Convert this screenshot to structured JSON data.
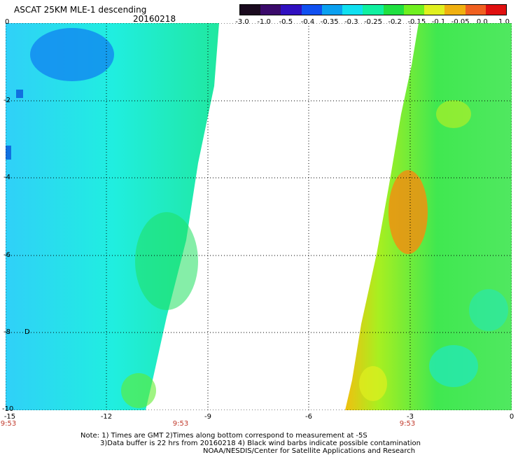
{
  "header": {
    "title": "ASCAT 25KM MLE-1 descending",
    "date": "20160218"
  },
  "colorbar": {
    "labels": [
      "-3.0",
      "-1.0",
      "-0.5",
      "-0.4",
      "-0.35",
      "-0.3",
      "-0.25",
      "-0.2",
      "-0.15",
      "-0.1",
      "-0.05",
      "0.0",
      "1.0"
    ],
    "colors": [
      "#1a0a1e",
      "#3a0a6a",
      "#3010c0",
      "#1050f0",
      "#0aa0f0",
      "#10e0f0",
      "#10f0a0",
      "#20e040",
      "#70f020",
      "#e0f020",
      "#f0b010",
      "#f06020",
      "#e01010"
    ]
  },
  "map": {
    "x_axis_labels": [
      "-15",
      "-12",
      "-9",
      "-6",
      "-3",
      "0"
    ],
    "y_axis_labels": [
      "0",
      "-2",
      "-4",
      "-6",
      "-8",
      "-10"
    ],
    "time_labels": [
      "9:53",
      "9:53",
      "9:53"
    ],
    "barb_label": "D"
  },
  "footer": {
    "note_line1": "Note: 1) Times are GMT 2)Times along bottom correspond to measurement at -5S",
    "note_line2": "3)Data buffer is 22 hrs from 20160218 4) Black wind barbs indicate possible contamination",
    "note_line3": "NOAA/NESDIS/Center for Satellite Applications and Research"
  }
}
